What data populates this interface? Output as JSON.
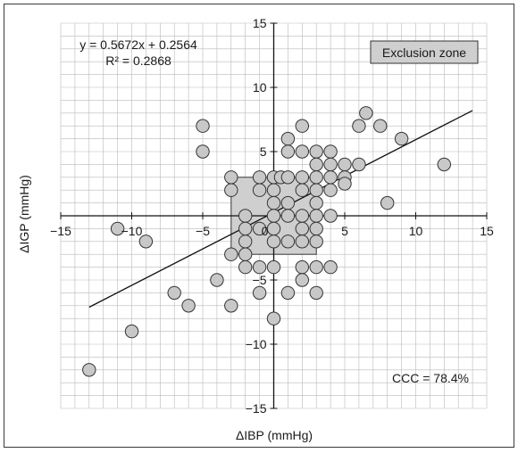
{
  "chart_data": {
    "type": "scatter",
    "xlabel": "ΔIBP (mmHg)",
    "ylabel": "ΔIGP (mmHg)",
    "xlim": [
      -15,
      15
    ],
    "ylim": [
      -15,
      15
    ],
    "xticks": [
      -15,
      -10,
      -5,
      0,
      5,
      10,
      15
    ],
    "yticks": [
      -15,
      -10,
      -5,
      5,
      10,
      15
    ],
    "tick_labels_x": [
      "−15",
      "−10",
      "−5",
      "0",
      "5",
      "10",
      "15"
    ],
    "tick_labels_y": [
      "−15",
      "−10",
      "−5",
      "5",
      "10",
      "15"
    ],
    "grid": true,
    "equation": "y = 0.5672x + 0.2564",
    "r2": "R² = 0.2868",
    "ccc": "CCC = 78.4%",
    "legend": "Exclusion zone",
    "exclusion_zone": {
      "x": [
        -3,
        3
      ],
      "y": [
        -3,
        3
      ]
    },
    "regression": {
      "slope": 0.5672,
      "intercept": 0.2564,
      "x_range": [
        -13,
        14
      ]
    },
    "points": [
      [
        -13,
        -12
      ],
      [
        -11,
        -1
      ],
      [
        -10,
        -9
      ],
      [
        -9,
        -2
      ],
      [
        -7,
        -6
      ],
      [
        -6,
        -7
      ],
      [
        -5,
        7
      ],
      [
        -5,
        5
      ],
      [
        -4,
        -5
      ],
      [
        -3,
        -7
      ],
      [
        -3,
        -3
      ],
      [
        -3,
        3
      ],
      [
        -3,
        2
      ],
      [
        -2,
        0
      ],
      [
        -2,
        -2
      ],
      [
        -2,
        -3
      ],
      [
        -2,
        -4
      ],
      [
        -2,
        -1
      ],
      [
        -1,
        3
      ],
      [
        -1,
        2
      ],
      [
        -1,
        -1
      ],
      [
        -1,
        -4
      ],
      [
        -1,
        -6
      ],
      [
        0,
        3
      ],
      [
        0,
        2
      ],
      [
        0,
        1
      ],
      [
        0,
        0
      ],
      [
        0,
        -1
      ],
      [
        0,
        -2
      ],
      [
        0,
        -4
      ],
      [
        0,
        -8
      ],
      [
        0.5,
        3
      ],
      [
        1,
        3
      ],
      [
        1,
        1
      ],
      [
        1,
        0
      ],
      [
        1,
        -2
      ],
      [
        1,
        -6
      ],
      [
        1,
        6
      ],
      [
        1,
        5
      ],
      [
        2,
        3
      ],
      [
        2,
        2
      ],
      [
        2,
        0
      ],
      [
        2,
        -1
      ],
      [
        2,
        -2
      ],
      [
        2,
        5
      ],
      [
        2,
        7
      ],
      [
        2,
        -4
      ],
      [
        2,
        -5
      ],
      [
        3,
        5
      ],
      [
        3,
        4
      ],
      [
        3,
        3
      ],
      [
        3,
        2
      ],
      [
        3,
        1
      ],
      [
        3,
        0
      ],
      [
        3,
        -1
      ],
      [
        3,
        -2
      ],
      [
        3,
        -4
      ],
      [
        3,
        -6
      ],
      [
        4,
        5
      ],
      [
        4,
        4
      ],
      [
        4,
        3
      ],
      [
        4,
        2
      ],
      [
        4,
        0
      ],
      [
        4,
        -4
      ],
      [
        5,
        4
      ],
      [
        5,
        3
      ],
      [
        5,
        2.5
      ],
      [
        6,
        4
      ],
      [
        6,
        7
      ],
      [
        6.5,
        8
      ],
      [
        7.5,
        7
      ],
      [
        9,
        6
      ],
      [
        8,
        1
      ],
      [
        12,
        4
      ]
    ]
  }
}
